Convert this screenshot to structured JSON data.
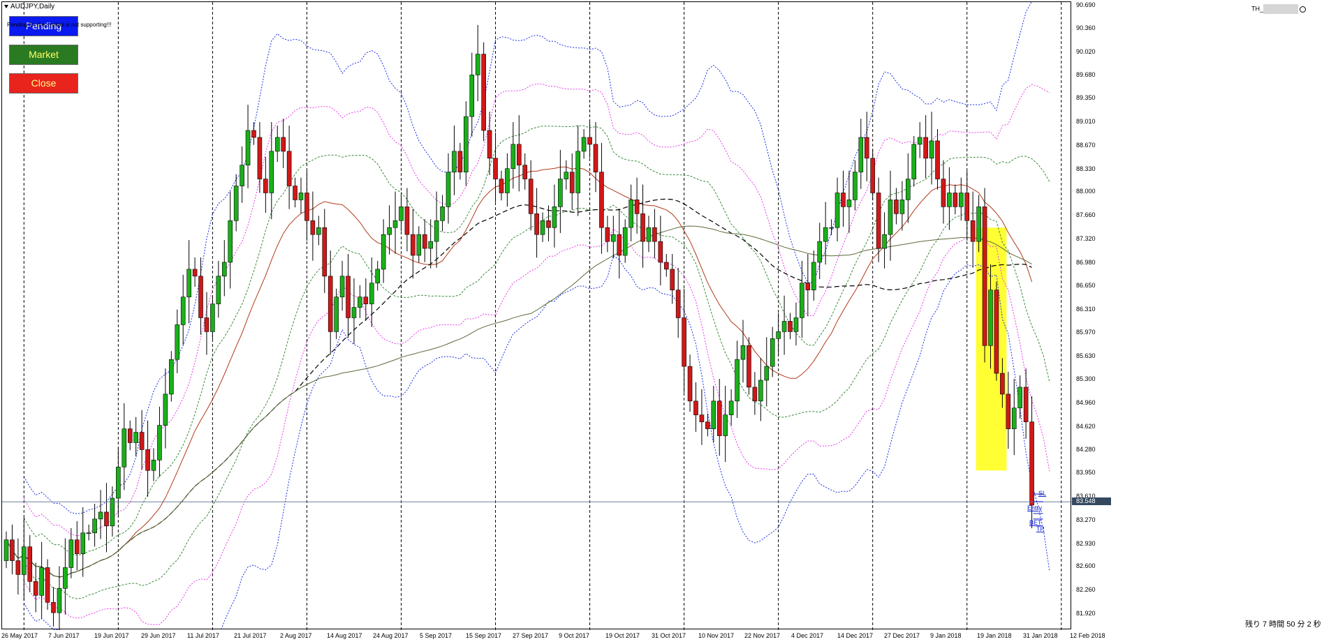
{
  "window": {
    "symbol_title": "AUDJPY,Daily",
    "indicator_name": "TH_"
  },
  "buttons": {
    "pending": "Pending",
    "market": "Market",
    "close": "Close"
  },
  "warning_text": "Pending for the symbol is not supporting!!!",
  "countdown": "残り 7 時間 50 分 2 秒",
  "current_price_label": "83.548",
  "trade_levels": {
    "sl": "SL",
    "entry": "Entry",
    "bet": "BET",
    "tp": "TP"
  },
  "colors": {
    "bull": "#1ab01a",
    "bear": "#d01818",
    "highlight": "#ffff33",
    "band_blue": "#1a2ee8",
    "band_magenta": "#e838e8",
    "band_green": "#3a8a3a",
    "ma_brown": "#b03a1a",
    "ma_black": "#000000",
    "ma_olive": "#5a6a3a",
    "pending_btn": "#0a1af0",
    "market_btn": "#2a7a22",
    "close_btn": "#e8241c"
  },
  "chart_data": {
    "type": "candlestick",
    "symbol": "AUDJPY",
    "timeframe": "Daily",
    "ylim": [
      81.7,
      90.75
    ],
    "current_price": 83.548,
    "y_ticks": [
      "90.690",
      "90.360",
      "90.020",
      "89.680",
      "89.350",
      "89.010",
      "88.670",
      "88.330",
      "88.000",
      "87.660",
      "87.320",
      "86.980",
      "86.650",
      "86.310",
      "85.970",
      "85.630",
      "85.300",
      "84.960",
      "84.620",
      "84.280",
      "83.950",
      "83.610",
      "83.270",
      "82.930",
      "82.600",
      "82.260",
      "81.920"
    ],
    "x_ticks": [
      "26 May 2017",
      "7 Jun 2017",
      "19 Jun 2017",
      "29 Jun 2017",
      "11 Jul 2017",
      "21 Jul 2017",
      "2 Aug 2017",
      "14 Aug 2017",
      "24 Aug 2017",
      "5 Sep 2017",
      "15 Sep 2017",
      "27 Sep 2017",
      "9 Oct 2017",
      "19 Oct 2017",
      "31 Oct 2017",
      "10 Nov 2017",
      "22 Nov 2017",
      "4 Dec 2017",
      "14 Dec 2017",
      "27 Dec 2017",
      "9 Jan 2018",
      "19 Jan 2018",
      "31 Jan 2018",
      "12 Feb 2018"
    ],
    "closes": [
      83.0,
      82.7,
      82.5,
      82.9,
      82.4,
      82.2,
      82.6,
      82.1,
      81.95,
      82.3,
      82.6,
      83.0,
      82.8,
      83.1,
      83.1,
      83.3,
      83.4,
      83.2,
      83.6,
      84.05,
      84.6,
      84.4,
      84.55,
      84.3,
      84.0,
      84.15,
      84.65,
      85.1,
      85.6,
      86.1,
      86.5,
      86.9,
      86.8,
      86.2,
      86.0,
      86.4,
      86.8,
      87.0,
      87.6,
      88.1,
      88.4,
      88.9,
      88.8,
      88.2,
      88.0,
      88.6,
      88.8,
      88.6,
      88.1,
      87.9,
      88.0,
      87.6,
      87.4,
      87.5,
      86.8,
      86.0,
      86.5,
      86.8,
      86.2,
      86.35,
      86.5,
      86.4,
      86.7,
      86.9,
      87.4,
      87.5,
      87.6,
      87.8,
      87.4,
      87.1,
      87.4,
      87.2,
      87.3,
      87.6,
      87.8,
      88.3,
      88.6,
      88.3,
      89.1,
      89.7,
      90.0,
      88.9,
      88.5,
      88.2,
      88.0,
      88.35,
      88.7,
      88.4,
      88.2,
      87.7,
      87.4,
      87.6,
      87.5,
      87.8,
      88.2,
      88.3,
      88.0,
      88.6,
      88.8,
      88.7,
      88.3,
      87.5,
      87.3,
      87.4,
      87.1,
      87.5,
      87.9,
      87.7,
      87.3,
      87.5,
      87.3,
      87.0,
      86.9,
      86.6,
      86.2,
      85.5,
      85.0,
      84.8,
      84.7,
      84.6,
      85.0,
      84.5,
      84.8,
      85.0,
      85.6,
      85.8,
      85.2,
      85.0,
      85.3,
      85.5,
      85.9,
      86.0,
      86.15,
      86.0,
      86.2,
      86.7,
      86.6,
      87.0,
      87.3,
      87.5,
      87.5,
      88.0,
      87.8,
      87.9,
      88.3,
      88.8,
      88.5,
      88.0,
      87.2,
      87.4,
      87.9,
      87.7,
      87.9,
      88.2,
      88.7,
      88.8,
      88.5,
      88.75,
      88.2,
      87.8,
      88.0,
      87.8,
      88.0,
      87.6,
      87.3,
      87.8,
      85.8,
      86.6,
      85.4,
      85.1,
      84.6,
      84.9,
      85.2,
      84.7,
      83.5
    ],
    "volatility_highlight": {
      "date_from": "1 Feb 2018",
      "date_to": "8 Feb 2018",
      "price_from": 84.0,
      "price_to": 87.5
    },
    "series": [
      {
        "name": "MA fast",
        "style": "solid brown"
      },
      {
        "name": "MA medium",
        "style": "dashed black"
      },
      {
        "name": "MA slow",
        "style": "solid olive"
      },
      {
        "name": "Bands outer",
        "style": "dotted blue"
      },
      {
        "name": "Bands middle",
        "style": "dotted magenta"
      },
      {
        "name": "Bands inner",
        "style": "dotted green"
      }
    ]
  }
}
